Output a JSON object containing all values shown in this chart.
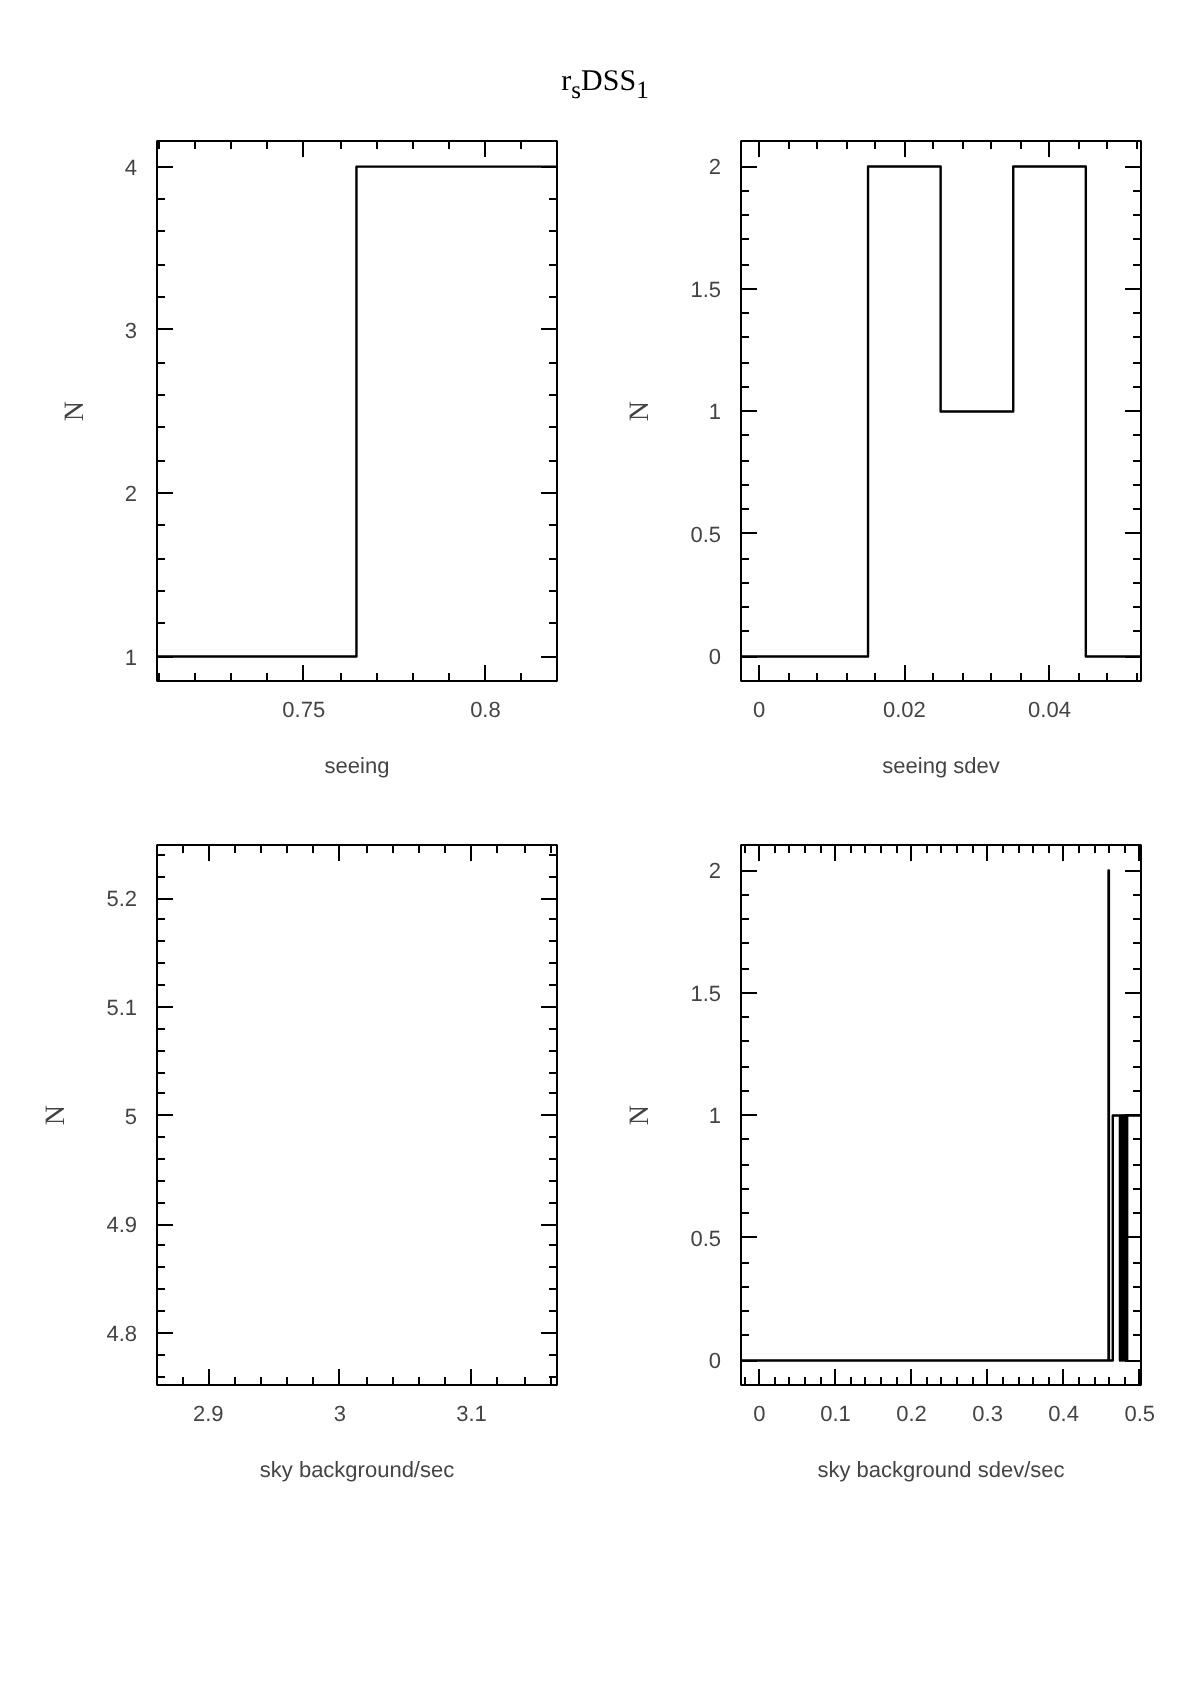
{
  "chart_data": [
    {
      "type": "histogram",
      "title": "r$_{s}$DSS$_{1}$",
      "xlabel": "seeing",
      "ylabel": "N",
      "bins": [
        0.7096,
        0.7645,
        0.8197
      ],
      "values": [
        1,
        4
      ],
      "color": "#000000",
      "xlim": [
        0.7096,
        0.8197
      ],
      "ylim": [
        0.85,
        4.157
      ],
      "xticks": [
        0.75,
        0.8
      ],
      "yticks": [
        1,
        2,
        3,
        4
      ],
      "grid": false
    },
    {
      "type": "histogram",
      "xlabel": "seeing sdev",
      "ylabel": "N",
      "bins": [
        -0.0025,
        0.015,
        0.025,
        0.035,
        0.045,
        0.0526
      ],
      "values": [
        0,
        2,
        1,
        2,
        0
      ],
      "color": "#000000",
      "xlim": [
        -0.0025,
        0.0526
      ],
      "ylim": [
        -0.1,
        2.104
      ],
      "xticks": [
        0,
        0.02,
        0.04
      ],
      "yticks": [
        0,
        0.5,
        1,
        1.5,
        2
      ],
      "grid": false
    },
    {
      "type": "histogram",
      "xlabel": "sky background/sec",
      "ylabel": "N",
      "xlim": [
        2.861,
        3.165
      ],
      "ylim": [
        4.752,
        5.249
      ],
      "xticks": [
        2.9,
        3,
        3.1
      ],
      "yticks": [
        4.8,
        4.9,
        5,
        5.1,
        5.2
      ],
      "grid": false
    },
    {
      "type": "histogram",
      "xlabel": "sky background sdev/sec",
      "ylabel": "N",
      "bins": [
        -0.0243,
        0.459,
        0.4595,
        0.4646,
        0.474,
        0.4745,
        0.477,
        0.4775,
        0.48,
        0.4805,
        0.483,
        0.4835,
        0.5017
      ],
      "values": [
        0,
        2,
        0,
        1,
        0,
        1,
        0,
        1,
        0,
        1,
        0,
        1
      ],
      "color": "#000000",
      "xlim": [
        -0.0243,
        0.5017
      ],
      "ylim": [
        -0.1,
        2.104
      ],
      "xticks": [
        0,
        0.1,
        0.2,
        0.3,
        0.4,
        0.5
      ],
      "yticks": [
        0,
        0.5,
        1,
        1.5,
        2
      ],
      "grid": false
    }
  ]
}
